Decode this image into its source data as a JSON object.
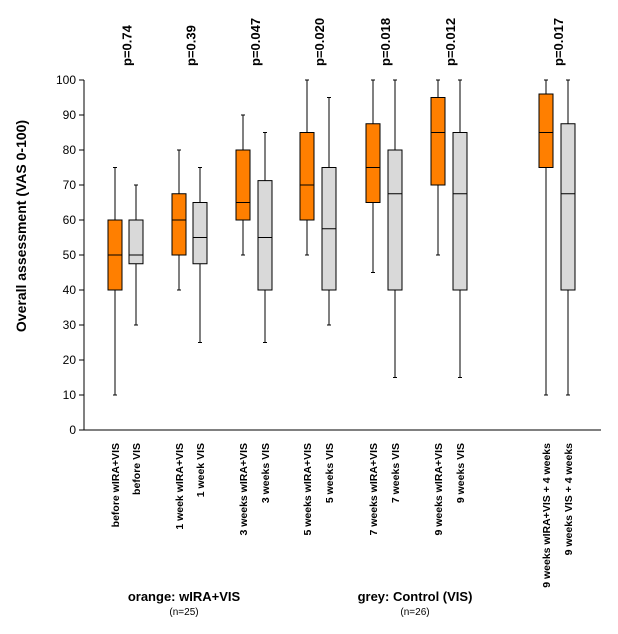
{
  "chart_data": {
    "type": "box",
    "ylabel": "Overall assessment (VAS 0-100)",
    "ylim": [
      0,
      100
    ],
    "yticks": [
      0,
      10,
      20,
      30,
      40,
      50,
      60,
      70,
      80,
      90,
      100
    ],
    "colors": {
      "wIRA+VIS": "#ff7f00",
      "VIS": "#d9d9d9",
      "stroke": "#000000"
    },
    "groups": [
      {
        "p_value": "p=0.74",
        "boxes": [
          {
            "label": "before wIRA+VIS",
            "series": "wIRA+VIS",
            "min": 10,
            "q1": 40,
            "median": 50,
            "q3": 60,
            "max": 75
          },
          {
            "label": "before VIS",
            "series": "VIS",
            "min": 30,
            "q1": 47.5,
            "median": 50,
            "q3": 60,
            "max": 70
          }
        ]
      },
      {
        "p_value": "p=0.39",
        "boxes": [
          {
            "label": "1 week wIRA+VIS",
            "series": "wIRA+VIS",
            "min": 40,
            "q1": 50,
            "median": 60,
            "q3": 67.5,
            "max": 80
          },
          {
            "label": "1 week VIS",
            "series": "VIS",
            "min": 25,
            "q1": 47.5,
            "median": 55,
            "q3": 65,
            "max": 75
          }
        ]
      },
      {
        "p_value": "p=0.047",
        "boxes": [
          {
            "label": "3 weeks wIRA+VIS",
            "series": "wIRA+VIS",
            "min": 50,
            "q1": 60,
            "median": 65,
            "q3": 80,
            "max": 90
          },
          {
            "label": "3 weeks VIS",
            "series": "VIS",
            "min": 25,
            "q1": 40,
            "median": 55,
            "q3": 71.25,
            "max": 85
          }
        ]
      },
      {
        "p_value": "p=0.020",
        "boxes": [
          {
            "label": "5 weeks wIRA+VIS",
            "series": "wIRA+VIS",
            "min": 50,
            "q1": 60,
            "median": 70,
            "q3": 85,
            "max": 100
          },
          {
            "label": "5 weeks VIS",
            "series": "VIS",
            "min": 30,
            "q1": 40,
            "median": 57.5,
            "q3": 75,
            "max": 95
          }
        ]
      },
      {
        "p_value": "p=0.018",
        "boxes": [
          {
            "label": "7 weeks wIRA+VIS",
            "series": "wIRA+VIS",
            "min": 45,
            "q1": 65,
            "median": 75,
            "q3": 87.5,
            "max": 100
          },
          {
            "label": "7 weeks VIS",
            "series": "VIS",
            "min": 15,
            "q1": 40,
            "median": 67.5,
            "q3": 80,
            "max": 100
          }
        ]
      },
      {
        "p_value": "p=0.012",
        "boxes": [
          {
            "label": "9 weeks wIRA+VIS",
            "series": "wIRA+VIS",
            "min": 50,
            "q1": 70,
            "median": 85,
            "q3": 95,
            "max": 100
          },
          {
            "label": "9 weeks VIS",
            "series": "VIS",
            "min": 15,
            "q1": 40,
            "median": 67.5,
            "q3": 85,
            "max": 100
          }
        ]
      },
      {
        "p_value": "p=0.017",
        "boxes": [
          {
            "label": "9 weeks wIRA+VIS + 4 weeks",
            "series": "wIRA+VIS",
            "min": 10,
            "q1": 75,
            "median": 85,
            "q3": 96,
            "max": 100
          },
          {
            "label": "9 weeks VIS + 4 weeks",
            "series": "VIS",
            "min": 10,
            "q1": 40,
            "median": 67.5,
            "q3": 87.5,
            "max": 100
          }
        ]
      }
    ]
  },
  "legend": {
    "orange": {
      "text": "orange: wIRA+VIS",
      "n": "(n=25)"
    },
    "grey": {
      "text": "grey: Control (VIS)",
      "n": "(n=26)"
    }
  }
}
